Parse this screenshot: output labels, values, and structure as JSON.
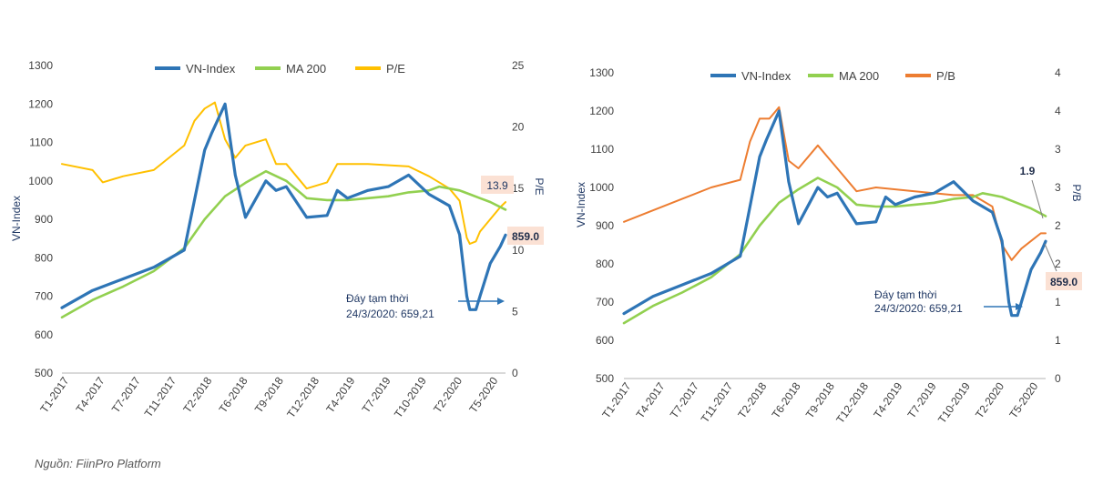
{
  "source_note": "Nguồn: FiinPro Platform",
  "colors": {
    "vnindex": "#2e75b6",
    "ma200": "#92d050",
    "pe": "#ffc000",
    "pb": "#ed7d31",
    "axis": "#d9d9d9",
    "highlight": "#fbe1d4"
  },
  "chart_data": [
    {
      "type": "line",
      "title": "",
      "xlabel": "",
      "ylabel": "VN-Index",
      "y2label": "P/E",
      "ylim": [
        500,
        1300
      ],
      "yticks": [
        "500",
        "600",
        "700",
        "800",
        "900",
        "1000",
        "1100",
        "1200",
        "1300"
      ],
      "y2lim": [
        0,
        25
      ],
      "y2ticks": [
        "0",
        "5",
        "10",
        "15",
        "20",
        "25"
      ],
      "xticks": [
        "T1-2017",
        "T4-2017",
        "T7-2017",
        "T11-2017",
        "T2-2018",
        "T6-2018",
        "T9-2018",
        "T12-2018",
        "T4-2019",
        "T7-2019",
        "T10-2019",
        "T2-2020",
        "T5-2020"
      ],
      "legend_position": "top",
      "grid": false,
      "series": [
        {
          "name": "VN-Index",
          "axis": "left",
          "color_key": "vnindex",
          "x": [
            0,
            3,
            6,
            9,
            12,
            13,
            14,
            14.7,
            16,
            17,
            18,
            20,
            21,
            22,
            24,
            26,
            27,
            28,
            30,
            32,
            34,
            36,
            38,
            39,
            39.7,
            40,
            40.6,
            41,
            42,
            43,
            43.5
          ],
          "y": [
            670,
            715,
            745,
            775,
            820,
            950,
            1080,
            1125,
            1200,
            1015,
            905,
            1000,
            975,
            985,
            905,
            910,
            975,
            955,
            975,
            985,
            1015,
            965,
            935,
            860,
            700,
            665,
            665,
            700,
            785,
            830,
            859
          ]
        },
        {
          "name": "MA 200",
          "axis": "left",
          "color_key": "ma200",
          "x": [
            0,
            3,
            6,
            9,
            12,
            14,
            16,
            18,
            20,
            22,
            24,
            26,
            28,
            30,
            32,
            34,
            36,
            37,
            38,
            39,
            40,
            41,
            42,
            43.5
          ],
          "y": [
            645,
            690,
            725,
            765,
            825,
            900,
            960,
            995,
            1025,
            1000,
            955,
            950,
            950,
            955,
            960,
            970,
            975,
            985,
            980,
            975,
            965,
            955,
            945,
            925
          ]
        },
        {
          "name": "P/E",
          "axis": "right",
          "color_key": "pe",
          "x": [
            0,
            3,
            4,
            6,
            9,
            12,
            13,
            14,
            15,
            16,
            17,
            18,
            20,
            21,
            22,
            24,
            26,
            27,
            30,
            34,
            36,
            38,
            39,
            39.7,
            40,
            40.6,
            41,
            42,
            43,
            43.5
          ],
          "y": [
            17,
            16.5,
            15.5,
            16,
            16.5,
            18.5,
            20.5,
            21.5,
            22,
            19,
            17.5,
            18.5,
            19,
            17,
            17,
            15,
            15.5,
            17,
            17,
            16.8,
            16,
            15,
            14,
            11,
            10.5,
            10.7,
            11.5,
            12.5,
            13.5,
            13.9
          ]
        }
      ],
      "annotations": {
        "trough_text_1": "Đáy tạm thời",
        "trough_text_2": "24/3/2020: 659,21",
        "last_vnindex": "859.0",
        "last_pe": "13.9"
      }
    },
    {
      "type": "line",
      "title": "",
      "xlabel": "",
      "ylabel": "VN-Index",
      "y2label": "P/B",
      "ylim": [
        500,
        1300
      ],
      "yticks": [
        "500",
        "600",
        "700",
        "800",
        "900",
        "1000",
        "1100",
        "1200",
        "1300"
      ],
      "y2lim": [
        0,
        4
      ],
      "y2ticks": [
        "0",
        "1",
        "1",
        "2",
        "2",
        "3",
        "3",
        "4",
        "4"
      ],
      "xticks": [
        "T1-2017",
        "T4-2017",
        "T7-2017",
        "T11-2017",
        "T2-2018",
        "T6-2018",
        "T9-2018",
        "T12-2018",
        "T4-2019",
        "T7-2019",
        "T10-2019",
        "T2-2020",
        "T5-2020"
      ],
      "legend_position": "top",
      "grid": false,
      "series": [
        {
          "name": "VN-Index",
          "axis": "left",
          "color_key": "vnindex",
          "x": [
            0,
            3,
            6,
            9,
            12,
            13,
            14,
            14.7,
            16,
            17,
            18,
            20,
            21,
            22,
            24,
            26,
            27,
            28,
            30,
            32,
            34,
            36,
            38,
            39,
            39.7,
            40,
            40.6,
            41,
            42,
            43,
            43.5
          ],
          "y": [
            670,
            715,
            745,
            775,
            820,
            950,
            1080,
            1125,
            1200,
            1015,
            905,
            1000,
            975,
            985,
            905,
            910,
            975,
            955,
            975,
            985,
            1015,
            965,
            935,
            860,
            700,
            665,
            665,
            700,
            785,
            830,
            859
          ]
        },
        {
          "name": "MA 200",
          "axis": "left",
          "color_key": "ma200",
          "x": [
            0,
            3,
            6,
            9,
            12,
            14,
            16,
            18,
            20,
            22,
            24,
            26,
            28,
            30,
            32,
            34,
            36,
            37,
            38,
            39,
            40,
            41,
            42,
            43.5
          ],
          "y": [
            645,
            690,
            725,
            765,
            825,
            900,
            960,
            995,
            1025,
            1000,
            955,
            950,
            950,
            955,
            960,
            970,
            975,
            985,
            980,
            975,
            965,
            955,
            945,
            925
          ]
        },
        {
          "name": "P/B",
          "axis": "right",
          "color_key": "pb",
          "x": [
            0,
            3,
            6,
            9,
            12,
            13,
            14,
            15,
            16,
            17,
            18,
            20,
            21,
            22,
            24,
            26,
            30,
            34,
            36,
            38,
            39,
            40,
            41,
            42,
            43,
            43.5
          ],
          "y": [
            2.05,
            2.2,
            2.35,
            2.5,
            2.6,
            3.1,
            3.4,
            3.4,
            3.55,
            2.85,
            2.75,
            3.05,
            2.9,
            2.75,
            2.45,
            2.5,
            2.45,
            2.4,
            2.4,
            2.25,
            1.75,
            1.55,
            1.7,
            1.8,
            1.9,
            1.9
          ]
        }
      ],
      "annotations": {
        "trough_text_1": "Đáy tạm thời",
        "trough_text_2": "24/3/2020: 659,21",
        "last_vnindex": "859.0",
        "last_pb": "1.9"
      }
    }
  ]
}
